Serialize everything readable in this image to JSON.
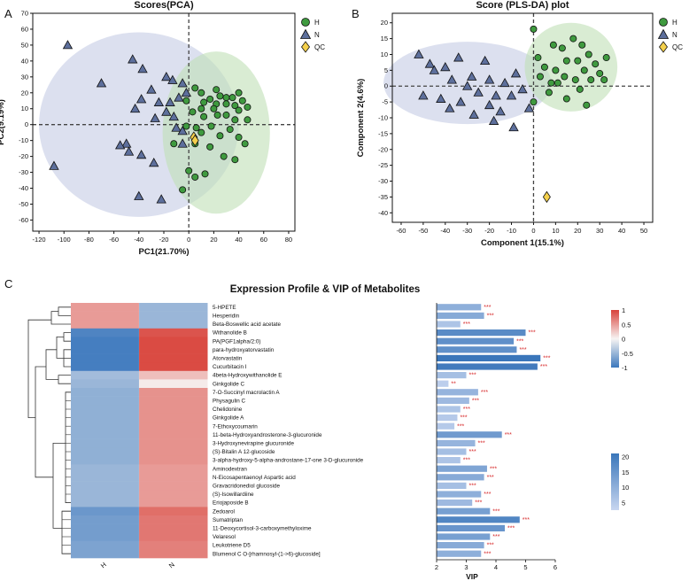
{
  "panel_labels": {
    "a": "A",
    "b": "B",
    "c": "C"
  },
  "chart_data": [
    {
      "type": "scatter",
      "title": "Scores(PCA)",
      "xlabel": "PC1(21.70%)",
      "ylabel": "PC2(9.19%)",
      "xlim": [
        -125,
        85
      ],
      "ylim": [
        -67,
        70
      ],
      "xticks": [
        -120,
        -100,
        -80,
        -60,
        -40,
        -20,
        0,
        20,
        40,
        60,
        80
      ],
      "yticks": [
        -60,
        -50,
        -40,
        -30,
        -20,
        -10,
        0,
        10,
        20,
        30,
        40,
        50,
        60,
        70
      ],
      "legend": [
        {
          "name": "H",
          "shape": "circle"
        },
        {
          "name": "N",
          "shape": "triangle"
        },
        {
          "name": "QC",
          "shape": "diamond"
        }
      ],
      "colors": {
        "H": "#3f9a3f",
        "N": "#5d6f9c",
        "QC": "#f4d04c",
        "H_ellipse": "#bfe0b5",
        "N_ellipse": "#c4cbe4"
      },
      "series": [
        {
          "name": "H",
          "points": [
            [
              5,
              23
            ],
            [
              22,
              22
            ],
            [
              40,
              20
            ],
            [
              10,
              20
            ],
            [
              25,
              18
            ],
            [
              17,
              16
            ],
            [
              30,
              17
            ],
            [
              35,
              17
            ],
            [
              -2,
              15
            ],
            [
              43,
              15
            ],
            [
              12,
              14
            ],
            [
              22,
              13
            ],
            [
              30,
              13
            ],
            [
              37,
              12
            ],
            [
              47,
              11
            ],
            [
              10,
              10
            ],
            [
              20,
              10
            ],
            [
              40,
              9
            ],
            [
              3,
              8
            ],
            [
              30,
              6
            ],
            [
              12,
              5
            ],
            [
              23,
              6
            ],
            [
              37,
              3
            ],
            [
              47,
              3
            ],
            [
              -2,
              -1
            ],
            [
              6,
              -2
            ],
            [
              18,
              -1
            ],
            [
              33,
              -3
            ],
            [
              10,
              -5
            ],
            [
              25,
              -7
            ],
            [
              40,
              -8
            ],
            [
              -12,
              -12
            ],
            [
              5,
              -12
            ],
            [
              17,
              -14
            ],
            [
              45,
              -12
            ],
            [
              28,
              -20
            ],
            [
              37,
              -22
            ],
            [
              0,
              -29
            ],
            [
              13,
              -31
            ],
            [
              5,
              -33
            ],
            [
              -5,
              -41
            ]
          ]
        },
        {
          "name": "N",
          "points": [
            [
              -97,
              50
            ],
            [
              -70,
              26
            ],
            [
              -45,
              41
            ],
            [
              -37,
              35
            ],
            [
              -18,
              30
            ],
            [
              -13,
              28
            ],
            [
              -30,
              22
            ],
            [
              -5,
              26
            ],
            [
              -38,
              16
            ],
            [
              -24,
              14
            ],
            [
              -15,
              14
            ],
            [
              -2,
              20
            ],
            [
              -8,
              17
            ],
            [
              -43,
              10
            ],
            [
              -18,
              8
            ],
            [
              -12,
              5
            ],
            [
              -27,
              4
            ],
            [
              -10,
              -2
            ],
            [
              -5,
              -4
            ],
            [
              -50,
              -12
            ],
            [
              -55,
              -13
            ],
            [
              -48,
              -17
            ],
            [
              -38,
              -19
            ],
            [
              -28,
              -24
            ],
            [
              -5,
              -12
            ],
            [
              -40,
              -45
            ],
            [
              -108,
              -26
            ],
            [
              -22,
              -47
            ]
          ]
        },
        {
          "name": "QC",
          "points": [
            [
              4,
              -8
            ],
            [
              5,
              -10
            ]
          ]
        }
      ],
      "ellipses": [
        {
          "name": "N",
          "cx": -40,
          "cy": 0,
          "rx": 80,
          "ry": 58
        },
        {
          "name": "H",
          "cx": 22,
          "cy": -5,
          "rx": 43,
          "ry": 51
        }
      ]
    },
    {
      "type": "scatter",
      "title": "Score (PLS-DA) plot",
      "xlabel": "Component 1(15.1%)",
      "ylabel": "Component 2(4.6%)",
      "xlim": [
        -64,
        54
      ],
      "ylim": [
        -43,
        23
      ],
      "xticks": [
        -60,
        -50,
        -40,
        -30,
        -20,
        -10,
        0,
        10,
        20,
        30,
        40,
        50
      ],
      "yticks": [
        -40,
        -35,
        -30,
        -25,
        -20,
        -15,
        -10,
        -5,
        0,
        5,
        10,
        15,
        20
      ],
      "legend": [
        {
          "name": "H",
          "shape": "circle"
        },
        {
          "name": "N",
          "shape": "triangle"
        },
        {
          "name": "QC",
          "shape": "diamond"
        }
      ],
      "colors": {
        "H": "#3f9a3f",
        "N": "#5d6f9c",
        "QC": "#f4d04c",
        "H_ellipse": "#bfe0b5",
        "N_ellipse": "#c4cbe4"
      },
      "series": [
        {
          "name": "H",
          "points": [
            [
              0,
              18
            ],
            [
              18,
              15
            ],
            [
              22,
              13
            ],
            [
              9,
              13
            ],
            [
              13,
              12
            ],
            [
              25,
              10
            ],
            [
              33,
              9
            ],
            [
              2,
              9
            ],
            [
              15,
              8
            ],
            [
              20,
              8
            ],
            [
              28,
              7
            ],
            [
              5,
              6
            ],
            [
              10,
              5
            ],
            [
              23,
              5
            ],
            [
              30,
              4
            ],
            [
              3,
              3
            ],
            [
              14,
              3
            ],
            [
              19,
              2
            ],
            [
              26,
              2
            ],
            [
              32,
              2
            ],
            [
              8,
              1
            ],
            [
              11,
              1
            ],
            [
              21,
              -1
            ],
            [
              7,
              -2
            ],
            [
              15,
              -4
            ],
            [
              0,
              -5
            ],
            [
              24,
              -6
            ]
          ]
        },
        {
          "name": "N",
          "points": [
            [
              -52,
              10
            ],
            [
              -34,
              9
            ],
            [
              -47,
              7
            ],
            [
              -22,
              8
            ],
            [
              -40,
              6
            ],
            [
              -45,
              5
            ],
            [
              -28,
              3
            ],
            [
              -37,
              2
            ],
            [
              -20,
              2
            ],
            [
              -30,
              0
            ],
            [
              -8,
              4
            ],
            [
              -13,
              1
            ],
            [
              -5,
              -1
            ],
            [
              -25,
              -2
            ],
            [
              -17,
              -3
            ],
            [
              -10,
              -3
            ],
            [
              -50,
              -3
            ],
            [
              -42,
              -4
            ],
            [
              -20,
              -6
            ],
            [
              -33,
              -5
            ],
            [
              -38,
              -7
            ],
            [
              -2,
              -7
            ],
            [
              -15,
              -8
            ],
            [
              -27,
              -9
            ],
            [
              -18,
              -11
            ],
            [
              -9,
              -13
            ]
          ]
        },
        {
          "name": "QC",
          "points": [
            [
              6,
              -35
            ]
          ]
        }
      ],
      "ellipses": [
        {
          "name": "N",
          "cx": -30,
          "cy": 1,
          "rx": 38,
          "ry": 13
        },
        {
          "name": "H",
          "cx": 17,
          "cy": 6,
          "rx": 21,
          "ry": 14
        }
      ]
    },
    {
      "type": "heatmap",
      "title": "Expression Profile & VIP of Metabolites",
      "columns": [
        "H",
        "N"
      ],
      "rows": [
        "5-HPETE",
        "Hesperidin",
        "Beta-Boswellic acid acetate",
        "Withanolide B",
        "PA(PGF1alpha/2:0)",
        "para-hydroxyatorvastatin",
        "Atorvastatin",
        "Cucurbitacin I",
        "4beta-Hydroxywithanolide E",
        "Ginkgolide C",
        "7-O-Succinyl macrolactin A",
        "Physagulin C",
        "Chelidonine",
        "Ginkgolide A",
        "7-Ethoxycoumarin",
        "11-beta-Hydroxyandrosterone-3-glucuronide",
        "3-Hydroxynevirapine glucuronide",
        "(S)-Bitalin A 12-glucoside",
        "3-alpha-hydroxy-5-alpha-androstane-17-one 3-D-glucuronide",
        "Aminodextran",
        "N-Eicosapentaenoyl Aspartic acid",
        "Gravacridonediol glucoside",
        "(S)-Isowillardiine",
        "Eriojaposide B",
        "Zedoarol",
        "Sumatriptan",
        "11-Deoxycortisol-3-carboxymethyloxime",
        "Velaresol",
        "Leukotriene D5",
        "Blumenol C O-[rhamnosyl-(1->6)-glucoside]"
      ],
      "values": [
        [
          0.5,
          -0.5
        ],
        [
          0.5,
          -0.5
        ],
        [
          0.5,
          -0.5
        ],
        [
          -0.9,
          0.9
        ],
        [
          -0.95,
          0.95
        ],
        [
          -0.95,
          0.95
        ],
        [
          -0.95,
          0.95
        ],
        [
          -0.95,
          0.95
        ],
        [
          -0.45,
          0.3
        ],
        [
          -0.5,
          0.05
        ],
        [
          -0.55,
          0.55
        ],
        [
          -0.55,
          0.55
        ],
        [
          -0.55,
          0.55
        ],
        [
          -0.55,
          0.55
        ],
        [
          -0.55,
          0.55
        ],
        [
          -0.55,
          0.55
        ],
        [
          -0.55,
          0.55
        ],
        [
          -0.55,
          0.55
        ],
        [
          -0.55,
          0.55
        ],
        [
          -0.5,
          0.5
        ],
        [
          -0.5,
          0.5
        ],
        [
          -0.5,
          0.5
        ],
        [
          -0.5,
          0.5
        ],
        [
          -0.5,
          0.5
        ],
        [
          -0.75,
          0.75
        ],
        [
          -0.7,
          0.7
        ],
        [
          -0.7,
          0.7
        ],
        [
          -0.7,
          0.7
        ],
        [
          -0.65,
          0.65
        ],
        [
          -0.65,
          0.65
        ]
      ],
      "colorbar": {
        "ticks": [
          "1",
          "0.5",
          "0",
          "-0.5",
          "-1"
        ],
        "low": "#3c78bd",
        "mid": "#f7f4f3",
        "high": "#d8423a"
      },
      "vip_colorbar": {
        "ticks": [
          "20",
          "15",
          "10",
          "5"
        ],
        "min": 2.5,
        "max": 21
      },
      "vip": [
        3.5,
        3.6,
        2.8,
        5.0,
        4.6,
        4.7,
        5.5,
        5.4,
        3.0,
        2.4,
        3.4,
        3.1,
        2.8,
        2.7,
        2.6,
        4.2,
        3.3,
        3.0,
        2.8,
        3.7,
        3.6,
        3.0,
        3.5,
        3.2,
        3.8,
        4.8,
        4.3,
        3.8,
        3.6,
        3.5
      ],
      "vip_score": [
        10,
        11,
        6,
        17,
        16,
        16,
        21,
        20,
        7,
        4,
        9,
        8,
        6,
        5,
        5,
        14,
        9,
        7,
        6,
        12,
        11,
        7,
        10,
        8,
        13,
        18,
        15,
        13,
        11,
        10
      ],
      "significance": [
        "***",
        "***",
        "***",
        "***",
        "***",
        "***",
        "***",
        "***",
        "***",
        "**",
        "***",
        "***",
        "***",
        "***",
        "***",
        "***",
        "***",
        "***",
        "***",
        "***",
        "***",
        "***",
        "***",
        "***",
        "***",
        "***",
        "***",
        "***",
        "***",
        "***"
      ],
      "vip_xlabel": "VIP",
      "vip_xticks": [
        2,
        3,
        4,
        5,
        6
      ],
      "vip_xlim": [
        2,
        6
      ]
    }
  ]
}
